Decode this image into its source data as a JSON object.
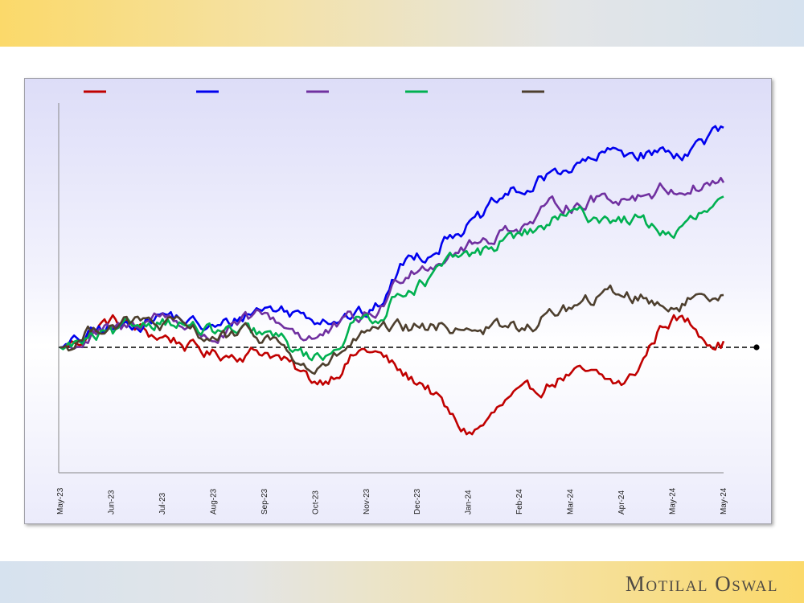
{
  "brand": "Motilal Oswal",
  "chart_data": {
    "type": "line",
    "title": "",
    "xlabel": "",
    "ylabel": "",
    "x_tick_labels": [
      "May-23",
      "Jun-23",
      "Jul-23",
      "Aug-23",
      "Sep-23",
      "Oct-23",
      "Nov-23",
      "Dec-23",
      "Jan-24",
      "Feb-24",
      "Mar-24",
      "Apr-24",
      "May-24",
      "May-24"
    ],
    "ylim": [
      -30,
      61
    ],
    "baseline": 0,
    "grid": false,
    "legend_position": "top",
    "series": [
      {
        "color": "#c00000",
        "x": [
          0,
          1,
          2,
          3,
          4,
          5,
          6,
          7,
          8,
          9,
          10,
          11,
          12,
          13
        ],
        "values": [
          0,
          7,
          3,
          -2,
          -1,
          -10,
          -1,
          -10,
          -25,
          -15,
          -8,
          -11,
          8,
          2
        ]
      },
      {
        "color": "#0000ee",
        "x": [
          0,
          1,
          2,
          3,
          4,
          5,
          6,
          7,
          8,
          9,
          10,
          11,
          12,
          13
        ],
        "values": [
          0,
          5,
          9,
          5,
          11,
          9,
          9,
          26,
          34,
          43,
          50,
          54,
          54,
          59
        ]
      },
      {
        "color": "#7030a0",
        "x": [
          0,
          1,
          2,
          3,
          4,
          5,
          6,
          7,
          8,
          9,
          10,
          11,
          12,
          13
        ],
        "values": [
          0,
          4,
          9,
          3,
          8,
          3,
          8,
          23,
          28,
          34,
          40,
          42,
          44,
          46
        ]
      },
      {
        "color": "#00b050",
        "x": [
          0,
          1,
          2,
          3,
          4,
          5,
          6,
          7,
          8,
          9,
          10,
          11,
          12,
          13
        ],
        "values": [
          0,
          3,
          8,
          4,
          3,
          -3,
          8,
          18,
          25,
          31,
          36,
          36,
          32,
          39
        ]
      },
      {
        "color": "#4d3f2e",
        "x": [
          0,
          1,
          2,
          3,
          4,
          5,
          6,
          7,
          8,
          9,
          10,
          11,
          12,
          13
        ],
        "values": [
          0,
          7,
          6,
          3,
          3,
          -7,
          3,
          5,
          6,
          5,
          11,
          15,
          12,
          16
        ]
      }
    ]
  }
}
